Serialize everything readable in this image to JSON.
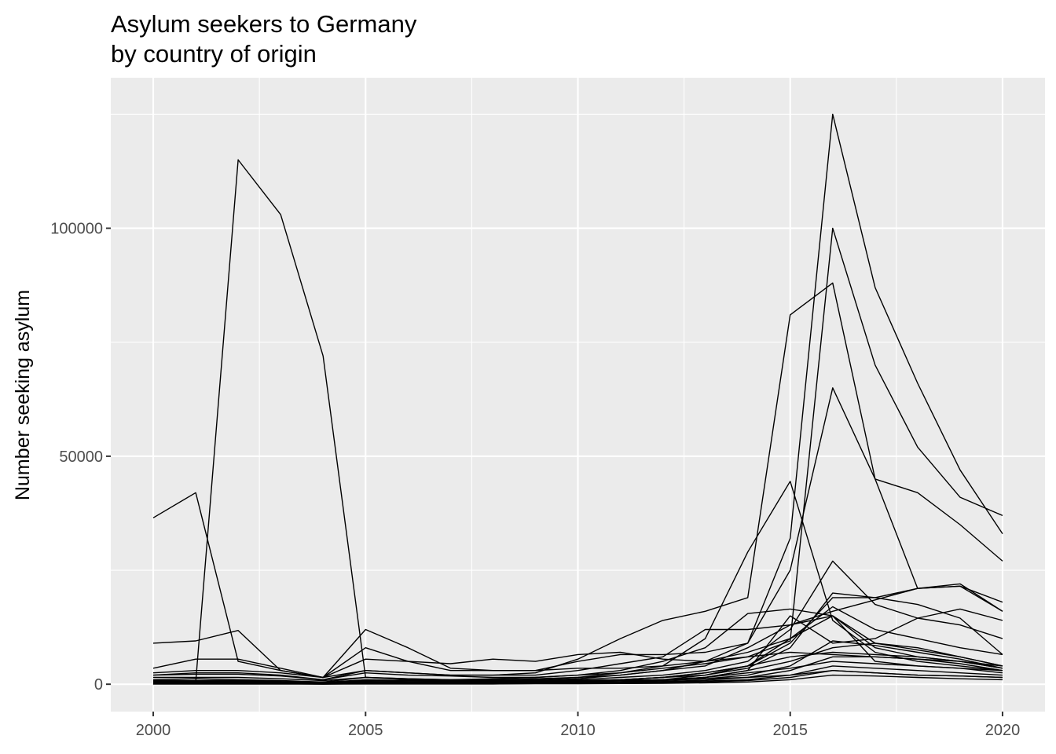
{
  "chart_data": {
    "type": "line",
    "title": "Asylum seekers to Germany",
    "subtitle": "by country of origin",
    "xlabel": "",
    "ylabel": "Number seeking asylum",
    "xlim": [
      1999,
      2021
    ],
    "ylim": [
      -6000,
      133000
    ],
    "x_ticks": [
      2000,
      2005,
      2010,
      2015,
      2020
    ],
    "y_ticks": [
      0,
      50000,
      100000
    ],
    "x_tick_labels": [
      "2000",
      "2005",
      "2010",
      "2015",
      "2020"
    ],
    "y_tick_labels": [
      "0",
      "50000",
      "100000"
    ],
    "grid": true,
    "legend": "none",
    "line_color": "#000000",
    "panel_color": "#ebebeb",
    "grid_color": "#ffffff",
    "x": [
      2000,
      2001,
      2002,
      2003,
      2004,
      2005,
      2006,
      2007,
      2008,
      2009,
      2010,
      2011,
      2012,
      2013,
      2014,
      2015,
      2016,
      2017,
      2018,
      2019,
      2020
    ],
    "series": [
      {
        "values": [
          300,
          500,
          115000,
          103000,
          72000,
          1500,
          1000,
          800,
          700,
          700,
          800,
          900,
          1000,
          1200,
          1500,
          2000,
          3000,
          2500,
          2000,
          1800,
          1500
        ]
      },
      {
        "values": [
          36500,
          42000,
          5000,
          3000,
          1500,
          12000,
          8000,
          3500,
          3000,
          3000,
          3500,
          3500,
          4000,
          5000,
          7000,
          10000,
          15000,
          8000,
          6000,
          5000,
          4000
        ]
      },
      {
        "values": [
          9000,
          9500,
          11800,
          3000,
          1500,
          8000,
          5000,
          3000,
          3000,
          3000,
          5000,
          6500,
          6500,
          7000,
          9000,
          32000,
          125000,
          87000,
          66000,
          47000,
          33000
        ]
      },
      {
        "values": [
          3500,
          5500,
          5500,
          3500,
          1500,
          5500,
          5000,
          4500,
          5500,
          5000,
          6500,
          7000,
          5500,
          5000,
          6000,
          9500,
          100000,
          70000,
          52000,
          41000,
          37000
        ]
      },
      {
        "values": [
          2000,
          2500,
          2500,
          2000,
          1000,
          3000,
          2500,
          2000,
          2000,
          2500,
          5500,
          10000,
          14000,
          16000,
          19000,
          81000,
          88000,
          45000,
          42000,
          35000,
          27000
        ]
      },
      {
        "values": [
          1500,
          1500,
          1500,
          1200,
          800,
          1500,
          1200,
          1000,
          1000,
          1200,
          1500,
          2000,
          3000,
          5000,
          9000,
          25000,
          65000,
          45000,
          21000,
          22000,
          16000
        ]
      },
      {
        "values": [
          800,
          800,
          800,
          600,
          400,
          1000,
          800,
          700,
          800,
          1000,
          1500,
          2500,
          4000,
          10000,
          29000,
          44500,
          14000,
          7000,
          5000,
          4000,
          3000
        ]
      },
      {
        "values": [
          1000,
          1200,
          1000,
          800,
          500,
          1500,
          1200,
          1000,
          1200,
          1500,
          2000,
          3000,
          5000,
          8000,
          15500,
          16500,
          15000,
          5000,
          4000,
          3500,
          3000
        ]
      },
      {
        "values": [
          500,
          600,
          600,
          500,
          300,
          800,
          700,
          600,
          700,
          800,
          1000,
          1500,
          2000,
          3000,
          5000,
          12000,
          27000,
          17500,
          14500,
          13000,
          10000
        ]
      },
      {
        "values": [
          2500,
          3000,
          3000,
          2500,
          1500,
          3000,
          2500,
          2000,
          2000,
          2000,
          3000,
          4500,
          6000,
          12000,
          12000,
          13000,
          16000,
          18500,
          21000,
          21500,
          18000
        ]
      },
      {
        "values": [
          400,
          500,
          500,
          400,
          300,
          600,
          500,
          500,
          500,
          600,
          800,
          1000,
          1500,
          2500,
          4000,
          9000,
          19000,
          19000,
          21000,
          21500,
          16000
        ]
      },
      {
        "values": [
          300,
          300,
          400,
          300,
          200,
          500,
          400,
          400,
          400,
          500,
          600,
          800,
          1000,
          2000,
          3500,
          8000,
          20000,
          19000,
          17500,
          14500,
          6500
        ]
      },
      {
        "values": [
          200,
          300,
          300,
          200,
          100,
          400,
          300,
          300,
          300,
          400,
          500,
          700,
          900,
          1500,
          3000,
          15000,
          9000,
          10000,
          14500,
          16500,
          14000
        ]
      },
      {
        "values": [
          300,
          400,
          400,
          300,
          200,
          500,
          400,
          400,
          500,
          600,
          800,
          1000,
          1500,
          2000,
          4000,
          10000,
          17000,
          12000,
          10000,
          8000,
          6500
        ]
      },
      {
        "values": [
          600,
          700,
          700,
          500,
          300,
          900,
          800,
          700,
          700,
          800,
          1200,
          2000,
          3000,
          4000,
          8000,
          13000,
          15000,
          9000,
          8000,
          6000,
          4000
        ]
      },
      {
        "values": [
          200,
          200,
          200,
          200,
          100,
          300,
          300,
          300,
          300,
          400,
          500,
          800,
          1000,
          1500,
          3000,
          5000,
          8000,
          9000,
          7500,
          6000,
          4000
        ]
      },
      {
        "values": [
          100,
          100,
          200,
          100,
          100,
          200,
          200,
          200,
          300,
          300,
          400,
          500,
          800,
          1200,
          2000,
          4000,
          9500,
          8500,
          7000,
          5500,
          3500
        ]
      },
      {
        "values": [
          400,
          500,
          500,
          400,
          200,
          600,
          500,
          400,
          500,
          600,
          800,
          1000,
          1500,
          2500,
          4000,
          6000,
          7000,
          6500,
          6000,
          5000,
          3500
        ]
      },
      {
        "values": [
          150,
          200,
          200,
          150,
          100,
          250,
          200,
          200,
          200,
          250,
          300,
          400,
          600,
          900,
          1500,
          3000,
          6000,
          6000,
          5500,
          4500,
          3000
        ]
      },
      {
        "values": [
          250,
          300,
          300,
          250,
          150,
          400,
          350,
          300,
          350,
          400,
          500,
          700,
          1000,
          1500,
          2500,
          3500,
          5000,
          4500,
          4000,
          3500,
          2500
        ]
      },
      {
        "values": [
          100,
          100,
          100,
          100,
          50,
          150,
          150,
          150,
          150,
          200,
          250,
          300,
          500,
          700,
          1000,
          2000,
          4000,
          3500,
          3000,
          2500,
          2000
        ]
      },
      {
        "values": [
          50,
          50,
          50,
          50,
          30,
          100,
          100,
          100,
          100,
          150,
          200,
          250,
          350,
          500,
          800,
          1500,
          3000,
          2500,
          2000,
          1800,
          1500
        ]
      },
      {
        "values": [
          50,
          50,
          50,
          50,
          30,
          50,
          50,
          50,
          50,
          100,
          100,
          150,
          200,
          300,
          500,
          1000,
          2000,
          1800,
          1500,
          1200,
          1000
        ]
      },
      {
        "values": [
          2000,
          2200,
          2200,
          1800,
          1000,
          2500,
          2000,
          1800,
          1500,
          1500,
          2000,
          2500,
          3500,
          4500,
          6000,
          7000,
          6500,
          6000,
          5500,
          5000,
          3500
        ]
      }
    ]
  }
}
